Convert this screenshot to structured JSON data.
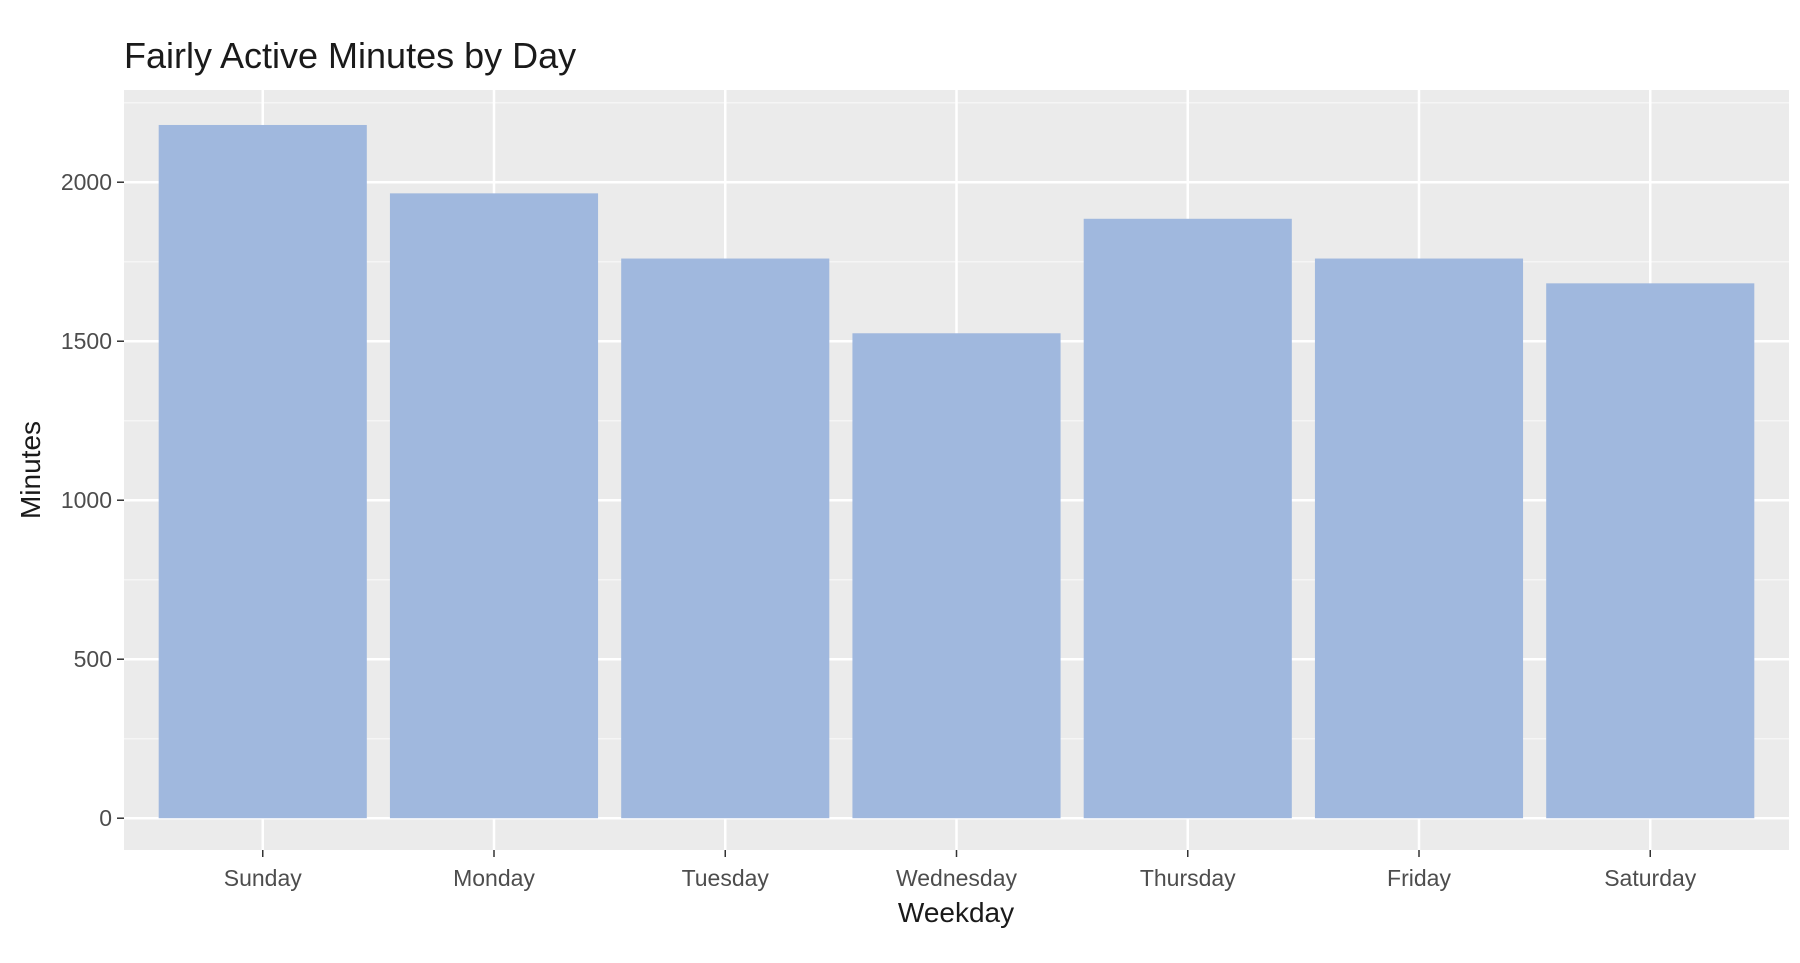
{
  "chart_data": {
    "type": "bar",
    "title": "Fairly Active Minutes by Day",
    "xlabel": "Weekday",
    "ylabel": "Minutes",
    "categories": [
      "Sunday",
      "Monday",
      "Tuesday",
      "Wednesday",
      "Thursday",
      "Friday",
      "Saturday"
    ],
    "values": [
      2180,
      1965,
      1760,
      1525,
      1885,
      1760,
      1682
    ],
    "ylim": [
      -100,
      2290
    ],
    "yticks": [
      0,
      500,
      1000,
      1500,
      2000
    ],
    "ytick_labels": [
      "0",
      "500",
      "1000",
      "1500",
      "2000"
    ],
    "grid": true,
    "legend": "none",
    "colors": {
      "bar": "#a0b8de",
      "panel": "#ebebeb",
      "grid_major": "#ffffff",
      "grid_minor": "#f5f5f5",
      "text": "#1a1a1a",
      "tick_text": "#4d4d4d",
      "tick_mark": "#333333"
    }
  }
}
